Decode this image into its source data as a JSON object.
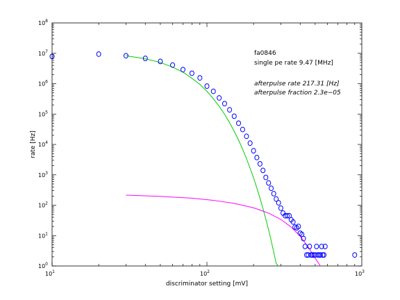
{
  "chart_data": {
    "type": "scatter",
    "xlabel": "discriminator setting [mV]",
    "ylabel": "rate [Hz]",
    "x_scale": "log",
    "y_scale": "log",
    "xlim": [
      10,
      1000
    ],
    "ylim": [
      1,
      100000000
    ],
    "x_ticks": [
      {
        "base": "10",
        "exp": "1",
        "value": 10
      },
      {
        "base": "10",
        "exp": "2",
        "value": 100
      },
      {
        "base": "10",
        "exp": "3",
        "value": 1000
      }
    ],
    "y_ticks": [
      {
        "base": "10",
        "exp": "0",
        "value": 1
      },
      {
        "base": "10",
        "exp": "1",
        "value": 10
      },
      {
        "base": "10",
        "exp": "2",
        "value": 100
      },
      {
        "base": "10",
        "exp": "3",
        "value": 1000
      },
      {
        "base": "10",
        "exp": "4",
        "value": 10000
      },
      {
        "base": "10",
        "exp": "5",
        "value": 100000
      },
      {
        "base": "10",
        "exp": "6",
        "value": 1000000
      },
      {
        "base": "10",
        "exp": "7",
        "value": 10000000
      },
      {
        "base": "10",
        "exp": "8",
        "value": 100000000
      }
    ],
    "grid": false,
    "annotations": {
      "tube": "fa0846",
      "single_pe": "single pe rate 9.47 [MHz]",
      "ap_rate": "afterpulse rate 217.31 [Hz]",
      "ap_fraction": "afterpulse fraction 2.3e−05"
    },
    "series": [
      {
        "style": "marker",
        "color": "#0000ff",
        "points": [
          [
            10,
            7900000
          ],
          [
            20,
            9400000
          ],
          [
            30,
            8300000
          ],
          [
            40,
            6800000
          ],
          [
            50,
            5400000
          ],
          [
            60,
            4100000
          ],
          [
            70,
            2900000
          ],
          [
            80,
            2200000
          ],
          [
            90,
            1550000
          ],
          [
            100,
            830000
          ],
          [
            110,
            560000
          ],
          [
            120,
            340000
          ],
          [
            130,
            220000
          ],
          [
            140,
            138000
          ],
          [
            150,
            85000
          ],
          [
            160,
            50000
          ],
          [
            170,
            31000
          ],
          [
            180,
            18500
          ],
          [
            190,
            11000
          ],
          [
            200,
            6200
          ],
          [
            210,
            3700
          ],
          [
            220,
            2300
          ],
          [
            230,
            1400
          ],
          [
            240,
            820
          ],
          [
            250,
            540
          ],
          [
            260,
            360
          ],
          [
            270,
            240
          ],
          [
            280,
            160
          ],
          [
            290,
            120
          ],
          [
            300,
            80
          ],
          [
            310,
            55
          ],
          [
            320,
            45
          ],
          [
            330,
            45
          ],
          [
            340,
            45
          ],
          [
            350,
            33
          ],
          [
            360,
            28
          ],
          [
            370,
            19
          ],
          [
            380,
            18
          ],
          [
            390,
            20
          ],
          [
            400,
            12
          ],
          [
            410,
            11
          ],
          [
            420,
            8
          ],
          [
            430,
            4.4
          ],
          [
            440,
            2.3
          ],
          [
            450,
            2.3
          ],
          [
            460,
            4.4
          ],
          [
            470,
            2.3
          ],
          [
            480,
            2.3
          ],
          [
            490,
            2.3
          ],
          [
            500,
            2.3
          ],
          [
            510,
            4.4
          ],
          [
            520,
            2.3
          ],
          [
            530,
            2.3
          ],
          [
            540,
            2.3
          ],
          [
            550,
            4.4
          ],
          [
            560,
            2.3
          ],
          [
            570,
            2.3
          ],
          [
            580,
            4.4
          ],
          [
            900,
            2.3
          ]
        ]
      },
      {
        "style": "line",
        "color": "#00cc00",
        "points": [
          [
            30,
            8300000
          ],
          [
            40,
            6600000
          ],
          [
            50,
            5000000
          ],
          [
            60,
            3500000
          ],
          [
            70,
            2400000
          ],
          [
            80,
            1500000
          ],
          [
            90,
            950000
          ],
          [
            100,
            560000
          ],
          [
            110,
            320000
          ],
          [
            120,
            180000
          ],
          [
            130,
            98000
          ],
          [
            140,
            52000
          ],
          [
            150,
            27000
          ],
          [
            160,
            14000
          ],
          [
            170,
            7000
          ],
          [
            180,
            3400
          ],
          [
            190,
            1650
          ],
          [
            200,
            790
          ],
          [
            210,
            370
          ],
          [
            220,
            170
          ],
          [
            230,
            78
          ],
          [
            240,
            35
          ],
          [
            250,
            15.5
          ],
          [
            260,
            6.8
          ],
          [
            280,
            1.2
          ],
          [
            290,
            1
          ]
        ]
      },
      {
        "style": "line",
        "color": "#ff00ff",
        "points": [
          [
            30,
            215
          ],
          [
            50,
            195
          ],
          [
            80,
            170
          ],
          [
            110,
            145
          ],
          [
            150,
            115
          ],
          [
            200,
            82
          ],
          [
            250,
            55
          ],
          [
            300,
            34
          ],
          [
            350,
            19
          ],
          [
            400,
            9.5
          ],
          [
            450,
            4.3
          ],
          [
            500,
            1.8
          ],
          [
            540,
            1
          ]
        ]
      }
    ]
  }
}
